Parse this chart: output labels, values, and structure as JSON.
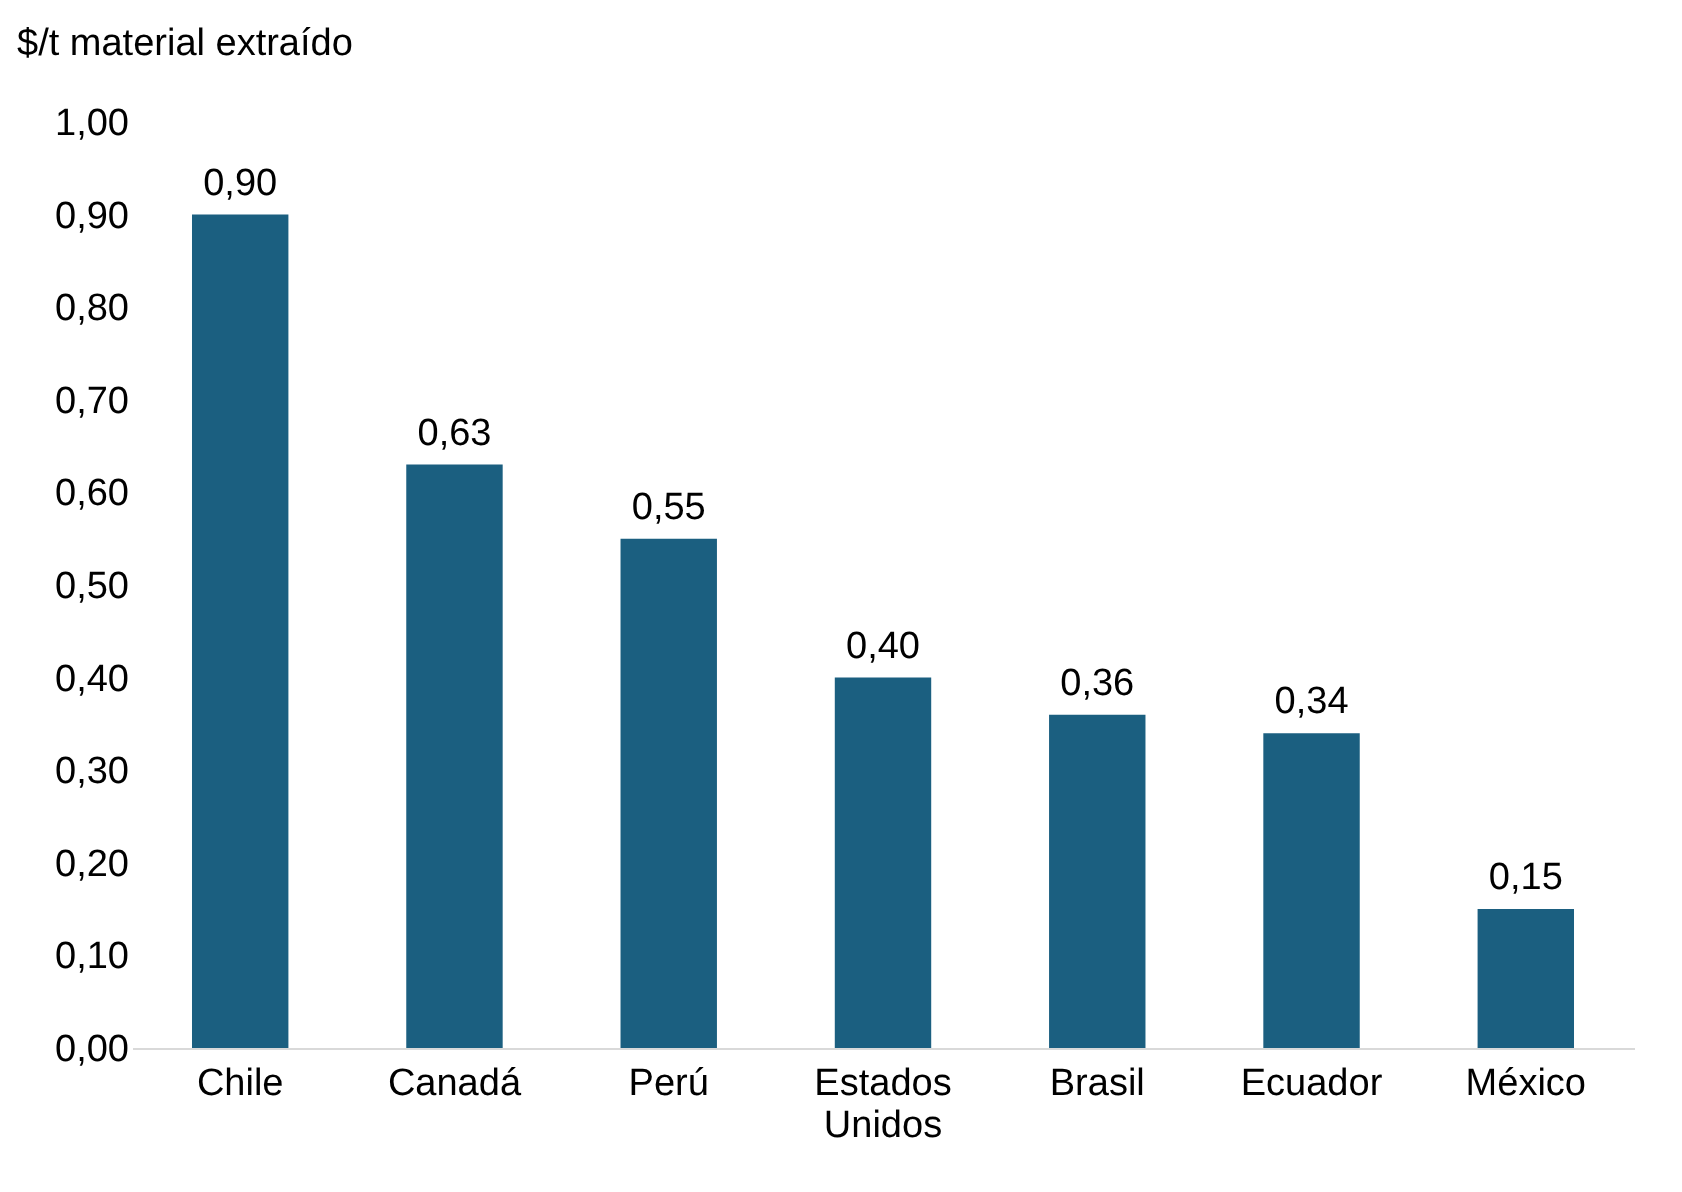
{
  "chart_data": {
    "type": "bar",
    "ylabel": "$/t material extraído",
    "categories": [
      "Chile",
      "Canadá",
      "Perú",
      "Estados Unidos",
      "Brasil",
      "Ecuador",
      "México"
    ],
    "values": [
      0.9,
      0.63,
      0.55,
      0.4,
      0.36,
      0.34,
      0.15
    ],
    "value_labels": [
      "0,90",
      "0,63",
      "0,55",
      "0,40",
      "0,36",
      "0,34",
      "0,15"
    ],
    "color": "#1b5f80",
    "ylim": [
      0,
      1
    ],
    "yticks": [
      {
        "value": 0,
        "label": "0,00"
      },
      {
        "value": 0.1,
        "label": "0,10"
      },
      {
        "value": 0.2,
        "label": "0,20"
      },
      {
        "value": 0.3,
        "label": "0,30"
      },
      {
        "value": 0.4,
        "label": "0,40"
      },
      {
        "value": 0.5,
        "label": "0,50"
      },
      {
        "value": 0.6,
        "label": "0,60"
      },
      {
        "value": 0.7,
        "label": "0,70"
      },
      {
        "value": 0.8,
        "label": "0,80"
      },
      {
        "value": 0.9,
        "label": "0,90"
      },
      {
        "value": 1.0,
        "label": "1,00"
      }
    ],
    "grid": false
  }
}
